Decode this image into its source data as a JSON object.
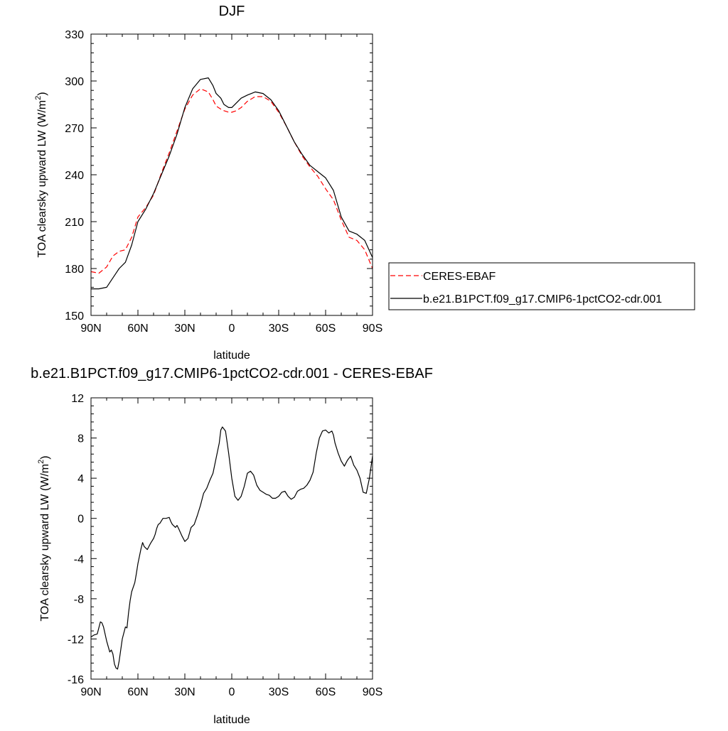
{
  "chart_data": [
    {
      "type": "line",
      "title": "DJF",
      "xlabel": "latitude",
      "ylabel": "TOA clearsky upward LW (W/m",
      "ylabel_sup": "2",
      "ylabel_close": ")",
      "xlim": [
        90,
        -90
      ],
      "ylim": [
        150,
        330
      ],
      "xticks": [
        {
          "value": 90,
          "label": "90N"
        },
        {
          "value": 60,
          "label": "60N"
        },
        {
          "value": 30,
          "label": "30N"
        },
        {
          "value": 0,
          "label": "0"
        },
        {
          "value": -30,
          "label": "30S"
        },
        {
          "value": -60,
          "label": "60S"
        },
        {
          "value": -90,
          "label": "90S"
        }
      ],
      "yticks": [
        {
          "value": 150,
          "label": "150"
        },
        {
          "value": 180,
          "label": "180"
        },
        {
          "value": 210,
          "label": "210"
        },
        {
          "value": 240,
          "label": "240"
        },
        {
          "value": 270,
          "label": "270"
        },
        {
          "value": 300,
          "label": "300"
        },
        {
          "value": 330,
          "label": "330"
        }
      ],
      "legend": {
        "placement": "right",
        "entries": [
          {
            "name": "CERES-EBAF",
            "color": "#ff0000",
            "style": "dashed"
          },
          {
            "name": "b.e21.B1PCT.f09_g17.CMIP6-1pctCO2-cdr.001",
            "color": "#000000",
            "style": "solid"
          }
        ]
      },
      "series": [
        {
          "name": "CERES-EBAF",
          "color": "#ff0000",
          "style": "dashed",
          "x": [
            90,
            85,
            80,
            76,
            72,
            68,
            64,
            60,
            55,
            50,
            45,
            40,
            35,
            30,
            25,
            20,
            15,
            12,
            10,
            7,
            5,
            2,
            0,
            -3,
            -6,
            -10,
            -15,
            -20,
            -25,
            -30,
            -35,
            -40,
            -45,
            -50,
            -55,
            -60,
            -65,
            -70,
            -75,
            -80,
            -85,
            -90
          ],
          "y": [
            178,
            177,
            181,
            188,
            191,
            192,
            200,
            213,
            219,
            227,
            241,
            254,
            268,
            282,
            291,
            295,
            293,
            288,
            284,
            282,
            281,
            280,
            280,
            281,
            283,
            287,
            290,
            290,
            287,
            280,
            271,
            261,
            252,
            245,
            239,
            231,
            224,
            211,
            200,
            198,
            192,
            180
          ]
        },
        {
          "name": "b.e21.B1PCT.f09_g17.CMIP6-1pctCO2-cdr.001",
          "color": "#000000",
          "style": "solid",
          "x": [
            90,
            85,
            80,
            76,
            72,
            68,
            64,
            60,
            55,
            50,
            45,
            40,
            35,
            30,
            25,
            20,
            15,
            12,
            10,
            7,
            5,
            2,
            0,
            -3,
            -6,
            -10,
            -15,
            -20,
            -25,
            -30,
            -35,
            -40,
            -45,
            -50,
            -55,
            -60,
            -65,
            -70,
            -75,
            -80,
            -85,
            -90
          ],
          "y": [
            167,
            167,
            168,
            174,
            180,
            184,
            195,
            210,
            218,
            228,
            240,
            252,
            266,
            283,
            295,
            301,
            302,
            297,
            292,
            289,
            285,
            283,
            283,
            286,
            289,
            291,
            293,
            292,
            288,
            281,
            271,
            261,
            253,
            246,
            242,
            238,
            230,
            213,
            204,
            202,
            198,
            187
          ]
        }
      ]
    },
    {
      "type": "line",
      "title": "b.e21.B1PCT.f09_g17.CMIP6-1pctCO2-cdr.001 - CERES-EBAF",
      "xlabel": "latitude",
      "ylabel": "TOA clearsky upward LW (W/m",
      "ylabel_sup": "2",
      "ylabel_close": ")",
      "xlim": [
        90,
        -90
      ],
      "ylim": [
        -16,
        12
      ],
      "xticks": [
        {
          "value": 90,
          "label": "90N"
        },
        {
          "value": 60,
          "label": "60N"
        },
        {
          "value": 30,
          "label": "30N"
        },
        {
          "value": 0,
          "label": "0"
        },
        {
          "value": -30,
          "label": "30S"
        },
        {
          "value": -60,
          "label": "60S"
        },
        {
          "value": -90,
          "label": "90S"
        }
      ],
      "yticks": [
        {
          "value": -16,
          "label": "-16"
        },
        {
          "value": -12,
          "label": "-12"
        },
        {
          "value": -8,
          "label": "-8"
        },
        {
          "value": -4,
          "label": "-4"
        },
        {
          "value": 0,
          "label": "0"
        },
        {
          "value": 4,
          "label": "4"
        },
        {
          "value": 8,
          "label": "8"
        },
        {
          "value": 12,
          "label": "12"
        }
      ],
      "series": [
        {
          "name": "",
          "color": "#000000",
          "style": "solid",
          "x": [
            90,
            88,
            86,
            84,
            83,
            82,
            80,
            78,
            77,
            76,
            75,
            74,
            73,
            72,
            70,
            68,
            67,
            66,
            65,
            64,
            62,
            61,
            60,
            58,
            57,
            56,
            54,
            52,
            50,
            49,
            48,
            47,
            46,
            44,
            42,
            40,
            39,
            38,
            36,
            35,
            34,
            32,
            30,
            28,
            26,
            24,
            22,
            20,
            18,
            16,
            14,
            12,
            10,
            8,
            7,
            6,
            4,
            2,
            0,
            -2,
            -4,
            -6,
            -8,
            -10,
            -12,
            -14,
            -16,
            -18,
            -20,
            -22,
            -24,
            -26,
            -28,
            -30,
            -32,
            -34,
            -36,
            -38,
            -40,
            -42,
            -44,
            -46,
            -48,
            -50,
            -52,
            -54,
            -56,
            -58,
            -60,
            -62,
            -64,
            -65,
            -66,
            -68,
            -70,
            -72,
            -74,
            -76,
            -78,
            -80,
            -82,
            -84,
            -86,
            -88,
            -90
          ],
          "y": [
            -11.8,
            -11.6,
            -11.5,
            -10.3,
            -10.4,
            -10.8,
            -12.2,
            -13.3,
            -13.1,
            -13.5,
            -14.5,
            -14.9,
            -15.0,
            -14.2,
            -12.0,
            -10.8,
            -10.9,
            -9.4,
            -8.2,
            -7.3,
            -6.4,
            -5.5,
            -4.5,
            -3.0,
            -2.4,
            -2.8,
            -3.1,
            -2.5,
            -2.0,
            -1.6,
            -1.0,
            -0.6,
            -0.5,
            0.0,
            0.0,
            0.1,
            -0.3,
            -0.6,
            -0.9,
            -0.7,
            -1.0,
            -1.7,
            -2.3,
            -2.0,
            -0.9,
            -0.6,
            0.3,
            1.3,
            2.5,
            3.0,
            3.8,
            4.5,
            6.0,
            7.5,
            8.8,
            9.1,
            8.7,
            6.5,
            4.0,
            2.2,
            1.8,
            2.2,
            3.2,
            4.5,
            4.7,
            4.3,
            3.3,
            2.8,
            2.6,
            2.4,
            2.3,
            2.0,
            2.0,
            2.2,
            2.6,
            2.7,
            2.2,
            1.9,
            2.1,
            2.7,
            2.9,
            3.0,
            3.3,
            3.8,
            4.6,
            6.5,
            8.0,
            8.7,
            8.8,
            8.5,
            8.7,
            8.3,
            7.5,
            6.5,
            5.7,
            5.2,
            5.8,
            6.2,
            5.3,
            4.8,
            4.0,
            2.6,
            2.5,
            4.0,
            6.2
          ]
        }
      ]
    }
  ]
}
